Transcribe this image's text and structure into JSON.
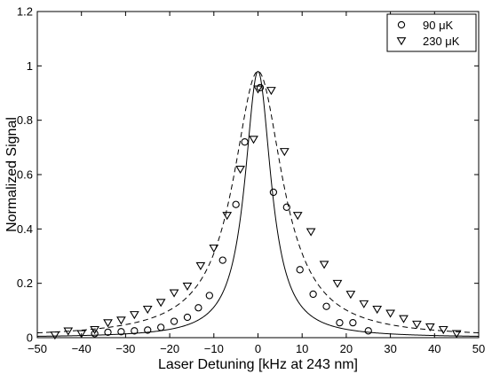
{
  "chart_data": {
    "type": "scatter",
    "title": "",
    "xlabel": "Laser Detuning [kHz at 243 nm]",
    "ylabel": "Normalized Signal",
    "xlim": [
      -50,
      50
    ],
    "ylim": [
      0,
      1.2
    ],
    "xticks": [
      -50,
      -40,
      -30,
      -20,
      -10,
      0,
      10,
      20,
      30,
      40,
      50
    ],
    "yticks": [
      0,
      0.2,
      0.4,
      0.6,
      0.8,
      1,
      1.2
    ],
    "xtick_labels": [
      "−50",
      "−40",
      "−30",
      "−20",
      "−10",
      "0",
      "10",
      "20",
      "30",
      "40",
      "50"
    ],
    "ytick_labels": [
      "0",
      "0.2",
      "0.4",
      "0.6",
      "0.8",
      "1",
      "1.2"
    ],
    "grid": false,
    "legend": {
      "placement": "top-right",
      "entries": [
        "90 μK",
        "230 μK"
      ]
    },
    "series": [
      {
        "name": "90 μK",
        "marker": "circle",
        "x": [
          -37,
          -34,
          -31,
          -28,
          -25,
          -22,
          -19,
          -16,
          -13.5,
          -11,
          -8,
          -5,
          -3,
          0.5,
          3.5,
          6.5,
          9.5,
          12.5,
          15.5,
          18.5,
          21.5,
          25
        ],
        "y": [
          0.015,
          0.02,
          0.022,
          0.025,
          0.028,
          0.038,
          0.06,
          0.075,
          0.11,
          0.155,
          0.285,
          0.49,
          0.72,
          0.92,
          0.535,
          0.48,
          0.25,
          0.16,
          0.115,
          0.055,
          0.055,
          0.025
        ]
      },
      {
        "name": "230 μK",
        "marker": "triangle-down",
        "x": [
          -46,
          -43,
          -40,
          -37,
          -34,
          -31,
          -28,
          -25,
          -22,
          -19,
          -16,
          -13,
          -10,
          -7,
          -4,
          -1,
          0,
          3,
          6,
          9,
          12,
          15,
          18,
          21,
          24,
          27,
          30,
          33,
          36,
          39,
          42,
          45
        ],
        "y": [
          0.01,
          0.025,
          0.015,
          0.03,
          0.055,
          0.065,
          0.085,
          0.105,
          0.13,
          0.165,
          0.19,
          0.265,
          0.33,
          0.45,
          0.62,
          0.73,
          0.915,
          0.91,
          0.685,
          0.45,
          0.39,
          0.27,
          0.2,
          0.16,
          0.125,
          0.105,
          0.09,
          0.07,
          0.05,
          0.04,
          0.03,
          0.015
        ]
      }
    ],
    "fits": [
      {
        "name": "fit 90 μK",
        "style": "solid",
        "kind": "lorentzian",
        "x0": 0,
        "peak": 0.98,
        "hwhm": 3.6
      },
      {
        "name": "fit 230 μK",
        "style": "dashed",
        "kind": "lorentzian",
        "x0": 0,
        "peak": 0.98,
        "hwhm": 6.8
      }
    ]
  }
}
